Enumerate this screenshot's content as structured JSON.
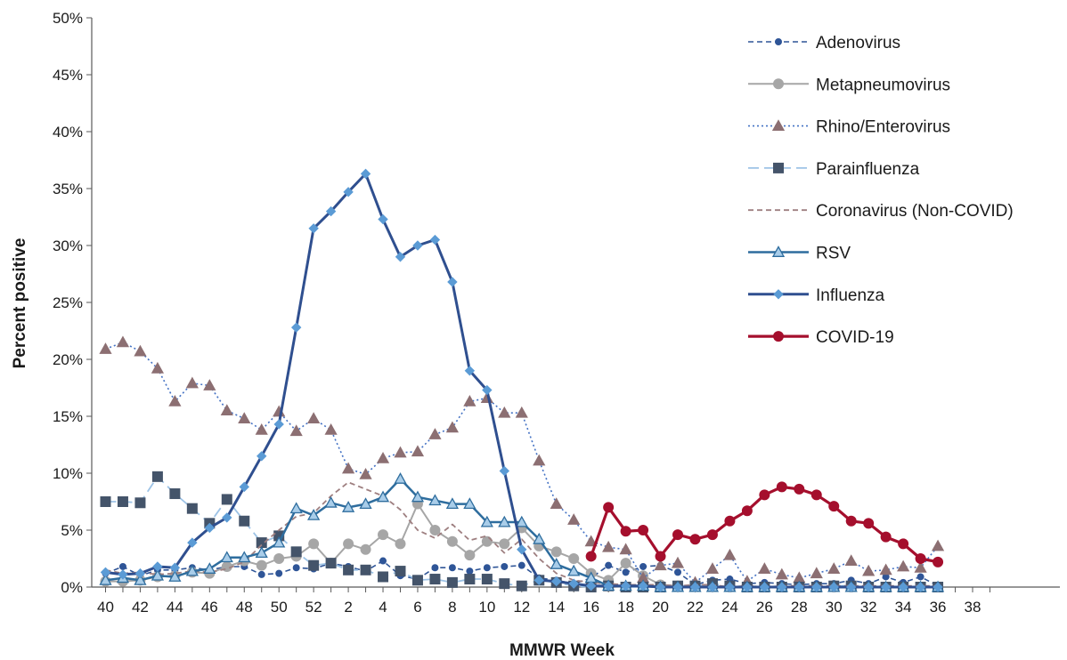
{
  "chart_data": {
    "type": "line",
    "title": "",
    "xlabel": "MMWR Week",
    "ylabel": "Percent positive",
    "ylim": [
      0,
      50
    ],
    "y_ticks": [
      "0%",
      "5%",
      "10%",
      "15%",
      "20%",
      "25%",
      "30%",
      "35%",
      "40%",
      "45%",
      "50%"
    ],
    "x_tick_labels": [
      "40",
      "42",
      "44",
      "46",
      "48",
      "50",
      "52",
      "2",
      "4",
      "6",
      "8",
      "10",
      "12",
      "14",
      "16",
      "18",
      "20",
      "22",
      "24",
      "26",
      "28",
      "30",
      "32",
      "34",
      "36",
      "38"
    ],
    "grid": false,
    "legend_position": "top-right",
    "weeks": [
      "40",
      "41",
      "42",
      "43",
      "44",
      "45",
      "46",
      "47",
      "48",
      "49",
      "50",
      "51",
      "52",
      "1",
      "2",
      "3",
      "4",
      "5",
      "6",
      "7",
      "8",
      "9",
      "10",
      "11",
      "12",
      "13",
      "14",
      "15",
      "16",
      "17",
      "18",
      "19",
      "20",
      "21",
      "22",
      "23",
      "24",
      "25",
      "26",
      "27",
      "28",
      "29",
      "30",
      "31",
      "32",
      "33",
      "34",
      "35",
      "36"
    ],
    "series": [
      {
        "name": "Adenovirus",
        "color": "#2f5597",
        "dash": "6,4",
        "marker": "circle-small",
        "values": [
          1.2,
          1.8,
          1.0,
          1.5,
          1.5,
          1.7,
          1.5,
          1.8,
          1.8,
          1.1,
          1.2,
          1.7,
          1.6,
          2.1,
          1.8,
          1.4,
          2.3,
          1.0,
          0.7,
          1.7,
          1.7,
          1.4,
          1.7,
          1.8,
          1.9,
          0.8,
          0.6,
          0.3,
          0.8,
          1.9,
          1.3,
          1.8,
          1.9,
          1.3,
          0.2,
          0.6,
          0.7,
          0.3,
          0.4,
          0.3,
          0.2,
          0.3,
          0.3,
          0.6,
          0.3,
          0.9,
          0.4,
          0.9,
          0.1
        ]
      },
      {
        "name": "Metapneumovirus",
        "color": "#a6a6a6",
        "dash": "",
        "marker": "circle",
        "values": [
          0.5,
          0.5,
          0.6,
          0.9,
          1.0,
          1.3,
          1.2,
          1.8,
          2.3,
          1.9,
          2.5,
          2.7,
          3.8,
          2.1,
          3.8,
          3.3,
          4.6,
          3.8,
          7.3,
          5.0,
          4.0,
          2.8,
          4.0,
          3.8,
          5.2,
          3.6,
          3.1,
          2.5,
          1.2,
          0.6,
          2.1,
          1.0,
          0.2,
          0.1,
          0.1,
          0.1,
          0.0,
          0.1,
          0.0,
          0.0,
          0.0,
          0.0,
          0.0,
          0.0,
          0.0,
          0.0,
          0.0,
          0.0,
          0.0
        ]
      },
      {
        "name": "Rhino/Enterovirus",
        "color": "#4472c4",
        "dash": "2,3",
        "marker": "triangle",
        "marker_color": "#8c6f72",
        "values": [
          20.9,
          21.5,
          20.7,
          19.2,
          16.3,
          17.9,
          17.7,
          15.5,
          14.8,
          13.8,
          15.4,
          13.7,
          14.8,
          13.8,
          10.4,
          9.9,
          11.3,
          11.8,
          11.9,
          13.4,
          14.0,
          16.3,
          16.6,
          15.3,
          15.3,
          11.1,
          7.3,
          5.9,
          4.0,
          3.5,
          3.3,
          0.8,
          1.9,
          2.1,
          0.4,
          1.6,
          2.8,
          0.5,
          1.6,
          1.1,
          0.8,
          1.2,
          1.6,
          2.3,
          1.4,
          1.5,
          1.8,
          1.7,
          3.6
        ]
      },
      {
        "name": "Parainfluenza",
        "color": "#9dc3e6",
        "dash": "12,6",
        "marker": "square",
        "marker_color": "#44546a",
        "values": [
          7.5,
          7.5,
          7.4,
          9.7,
          8.2,
          6.9,
          5.6,
          7.7,
          5.8,
          3.9,
          4.5,
          3.1,
          1.9,
          2.1,
          1.5,
          1.5,
          0.9,
          1.4,
          0.6,
          0.7,
          0.4,
          0.7,
          0.7,
          0.3,
          0.1,
          0.6,
          0.4,
          0.1,
          0.0,
          0.1,
          0.0,
          0.0,
          0.0,
          0.1,
          0.1,
          0.3,
          0.1,
          0.0,
          0.0,
          0.0,
          0.0,
          0.0,
          0.1,
          0.1,
          0.0,
          0.0,
          0.0,
          0.0,
          0.0
        ]
      },
      {
        "name": "Coronavirus (Non-COVID)",
        "color": "#9e7f80",
        "dash": "6,4",
        "marker": "none",
        "values": [
          1.5,
          1.2,
          1.3,
          1.1,
          1.2,
          1.4,
          1.3,
          1.6,
          2.2,
          3.7,
          5.0,
          6.2,
          6.5,
          8.0,
          9.2,
          8.6,
          8.0,
          6.8,
          5.0,
          4.3,
          5.5,
          4.1,
          4.5,
          3.0,
          4.2,
          2.5,
          1.2,
          0.6,
          0.4,
          0.3,
          0.2,
          0.2,
          0.2,
          0.1,
          0.2,
          0.2,
          0.0,
          0.1,
          0.0,
          0.1,
          0.1,
          0.1,
          0.1,
          0.1,
          0.1,
          0.1,
          0.1,
          0.1,
          0.1
        ]
      },
      {
        "name": "RSV",
        "color": "#2e6d9e",
        "dash": "",
        "marker": "triangle",
        "marker_color": "#a9cde9",
        "marker_stroke": "#2e6d9e",
        "values": [
          0.6,
          0.8,
          0.6,
          1.0,
          0.9,
          1.4,
          1.6,
          2.6,
          2.6,
          3.0,
          3.9,
          6.9,
          6.3,
          7.4,
          7.0,
          7.3,
          7.9,
          9.5,
          7.9,
          7.6,
          7.3,
          7.3,
          5.7,
          5.7,
          5.7,
          4.2,
          2.0,
          1.4,
          0.8,
          0.1,
          0.1,
          0.1,
          0.0,
          0.0,
          0.0,
          0.0,
          0.0,
          0.0,
          0.0,
          0.0,
          0.0,
          0.0,
          0.0,
          0.0,
          0.0,
          0.0,
          0.0,
          0.0,
          0.0
        ]
      },
      {
        "name": "Influenza",
        "color": "#2f4f8f",
        "dash": "",
        "marker": "diamond",
        "marker_color": "#5b9bd5",
        "values": [
          1.3,
          1.1,
          1.2,
          1.8,
          1.7,
          3.9,
          5.2,
          6.1,
          8.8,
          11.5,
          14.3,
          22.8,
          31.5,
          33.0,
          34.7,
          36.3,
          32.3,
          29.0,
          30.0,
          30.5,
          26.8,
          19.0,
          17.3,
          10.2,
          3.3,
          0.6,
          0.5,
          0.3,
          0.1,
          0.1,
          0.1,
          0.1,
          0.0,
          0.0,
          0.0,
          0.0,
          0.0,
          0.0,
          0.0,
          0.0,
          0.0,
          0.0,
          0.0,
          0.0,
          0.0,
          0.0,
          0.0,
          0.0,
          0.0
        ]
      },
      {
        "name": "COVID-19",
        "color": "#a50f2d",
        "dash": "",
        "marker": "circle-large",
        "values": [
          null,
          null,
          null,
          null,
          null,
          null,
          null,
          null,
          null,
          null,
          null,
          null,
          null,
          null,
          null,
          null,
          null,
          null,
          null,
          null,
          null,
          null,
          null,
          null,
          null,
          null,
          null,
          null,
          2.7,
          7.0,
          4.9,
          5.0,
          2.7,
          4.6,
          4.2,
          4.6,
          5.8,
          6.7,
          8.1,
          8.8,
          8.6,
          8.1,
          7.1,
          5.8,
          5.6,
          4.4,
          3.8,
          2.5,
          2.2
        ]
      }
    ]
  }
}
